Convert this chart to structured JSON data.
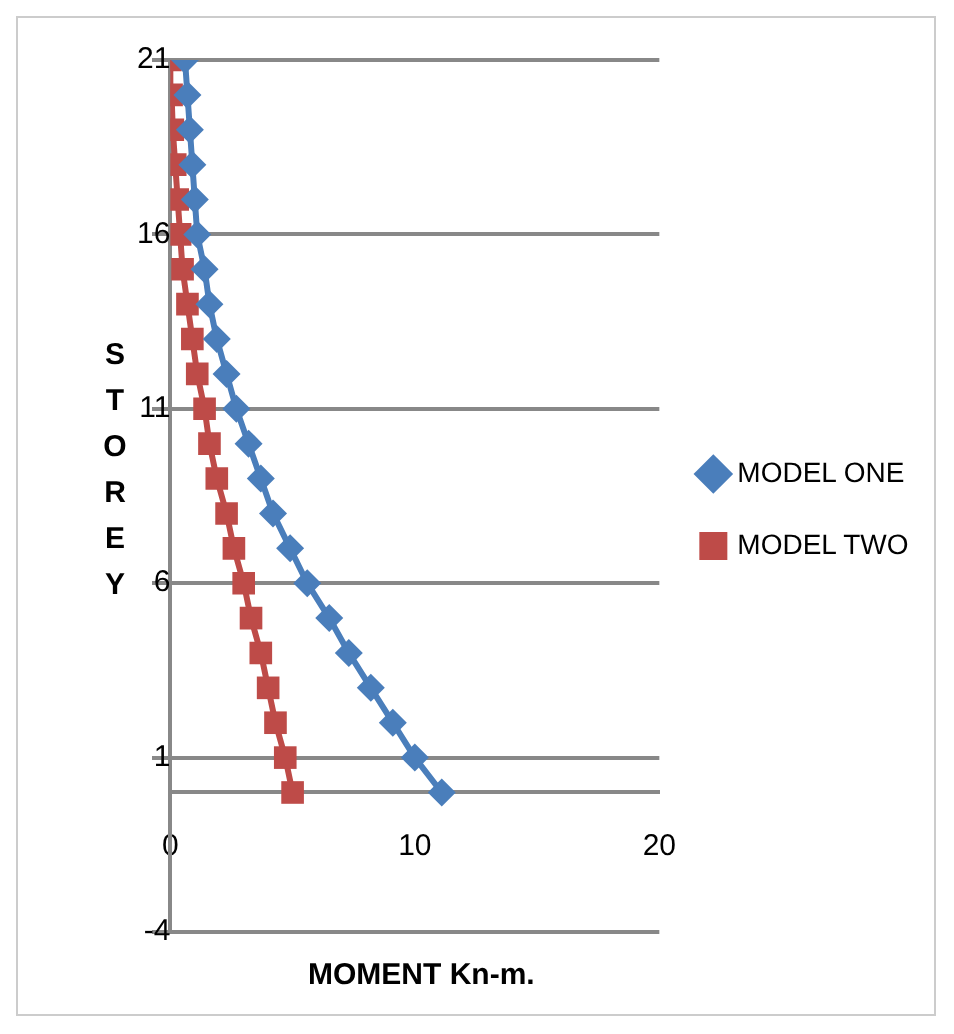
{
  "chart_data": {
    "type": "line",
    "xlabel": "MOMENT Kn-m.",
    "ylabel": "STOREY",
    "xlim": [
      0,
      20
    ],
    "xticks": [
      0,
      10,
      20
    ],
    "ylim": [
      -4,
      21
    ],
    "yticks": [
      -4,
      1,
      6,
      11,
      16,
      21
    ],
    "grid": "y",
    "legend": "right",
    "series": [
      {
        "name": "MODEL ONE",
        "color": "#4a7ebb",
        "marker": "diamond",
        "x": [
          11.1,
          10,
          9.1,
          8.2,
          7.3,
          6.5,
          5.6,
          4.9,
          4.2,
          3.7,
          3.2,
          2.7,
          2.3,
          1.9,
          1.6,
          1.4,
          1.1,
          1,
          0.9,
          0.8,
          0.7,
          0.6
        ],
        "values": [
          0,
          1,
          2,
          3,
          4,
          5,
          6,
          7,
          8,
          9,
          10,
          11,
          12,
          13,
          14,
          15,
          16,
          17,
          18,
          19,
          20,
          21
        ]
      },
      {
        "name": "MODEL TWO",
        "color": "#be4b48",
        "marker": "square",
        "x": [
          5,
          4.7,
          4.3,
          4,
          3.7,
          3.3,
          3,
          2.6,
          2.3,
          1.9,
          1.6,
          1.4,
          1.1,
          0.9,
          0.7,
          0.5,
          0.4,
          0.3,
          0.2,
          0.1,
          0.05,
          0
        ],
        "values": [
          0,
          1,
          2,
          3,
          4,
          5,
          6,
          7,
          8,
          9,
          10,
          11,
          12,
          13,
          14,
          15,
          16,
          17,
          18,
          19,
          20,
          21
        ]
      }
    ]
  }
}
